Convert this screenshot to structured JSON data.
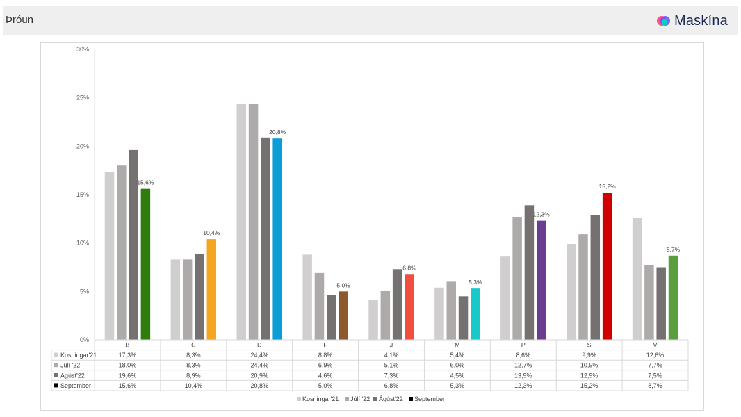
{
  "header": {
    "title": "Þróun",
    "brand": "Maskína"
  },
  "colors": {
    "series": [
      "#d0cece",
      "#aeaaaa",
      "#767171",
      "#000000"
    ],
    "september_bars": [
      "#2e7d0e",
      "#f4a522",
      "#0b9dd6",
      "#8c5a2c",
      "#f04e3e",
      "#19c9c9",
      "#6a3d8f",
      "#d00000",
      "#5b9e3d"
    ],
    "logo": [
      "#ff4f8b",
      "#6a4cff",
      "#00d1c1"
    ]
  },
  "chart_data": {
    "type": "bar",
    "categories": [
      "B",
      "C",
      "D",
      "F",
      "J",
      "M",
      "P",
      "S",
      "V"
    ],
    "series": [
      {
        "name": "Kosningar'21",
        "values": [
          17.3,
          8.3,
          24.4,
          8.8,
          4.1,
          5.4,
          8.6,
          9.9,
          12.6
        ],
        "labels": [
          "17,3%",
          "8,3%",
          "24,4%",
          "8,8%",
          "4,1%",
          "5,4%",
          "8,6%",
          "9,9%",
          "12,6%"
        ]
      },
      {
        "name": "Júlí '22",
        "values": [
          18.0,
          8.3,
          24.4,
          6.9,
          5.1,
          6.0,
          12.7,
          10.9,
          7.7
        ],
        "labels": [
          "18,0%",
          "8,3%",
          "24,4%",
          "6,9%",
          "5,1%",
          "6,0%",
          "12,7%",
          "10,9%",
          "7,7%"
        ]
      },
      {
        "name": "Ágúst'22",
        "values": [
          19.6,
          8.9,
          20.9,
          4.6,
          7.3,
          4.5,
          13.9,
          12.9,
          7.5
        ],
        "labels": [
          "19,6%",
          "8,9%",
          "20,9%",
          "4,6%",
          "7,3%",
          "4,5%",
          "13,9%",
          "12,9%",
          "7,5%"
        ]
      },
      {
        "name": "September",
        "values": [
          15.6,
          10.4,
          20.8,
          5.0,
          6.8,
          5.3,
          12.3,
          15.2,
          8.7
        ],
        "labels": [
          "15,6%",
          "10,4%",
          "20,8%",
          "5,0%",
          "6,8%",
          "5,3%",
          "12,3%",
          "15,2%",
          "8,7%"
        ]
      }
    ],
    "yticks": [
      "0%",
      "5%",
      "10%",
      "15%",
      "20%",
      "25%",
      "30%"
    ],
    "ylim": [
      0,
      30
    ],
    "data_labels_series": "September",
    "legend_position": "bottom",
    "data_table": true
  }
}
